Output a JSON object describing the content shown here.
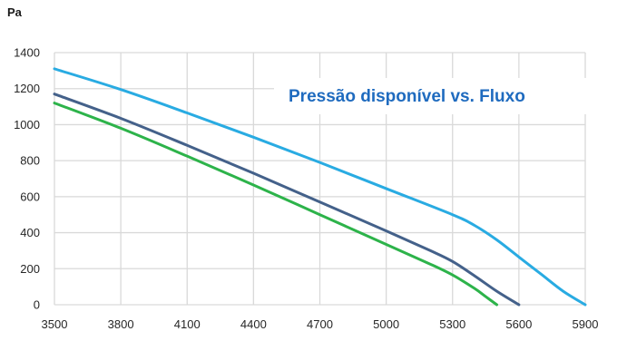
{
  "chart_data": {
    "type": "line",
    "title": "Pressão disponível vs. Fluxo",
    "title_color": "#1f6bbf",
    "ylabel": "Pa",
    "xlabel": "",
    "xlim": [
      3500,
      5900
    ],
    "ylim": [
      0,
      1400
    ],
    "x_ticks": [
      "3500",
      "3800",
      "4100",
      "4400",
      "4700",
      "5000",
      "5300",
      "5600",
      "5900"
    ],
    "y_ticks": [
      "0",
      "200",
      "400",
      "600",
      "800",
      "1000",
      "1200",
      "1400"
    ],
    "grid": true,
    "series": [
      {
        "color": "#29abe2",
        "x": [
          3500,
          3800,
          4100,
          4400,
          4700,
          5000,
          5300,
          5400,
          5500,
          5600,
          5700,
          5800,
          5900
        ],
        "y": [
          1310,
          1195,
          1065,
          930,
          790,
          645,
          500,
          440,
          360,
          265,
          170,
          75,
          0
        ]
      },
      {
        "color": "#44618a",
        "x": [
          3500,
          3800,
          4100,
          4400,
          4700,
          5000,
          5200,
          5300,
          5400,
          5500,
          5600
        ],
        "y": [
          1170,
          1035,
          885,
          730,
          570,
          410,
          300,
          240,
          160,
          75,
          0
        ]
      },
      {
        "color": "#2db34a",
        "x": [
          3500,
          3800,
          4100,
          4400,
          4700,
          5000,
          5200,
          5300,
          5400,
          5450,
          5500
        ],
        "y": [
          1120,
          980,
          825,
          665,
          500,
          335,
          225,
          165,
          90,
          45,
          0
        ]
      }
    ]
  }
}
